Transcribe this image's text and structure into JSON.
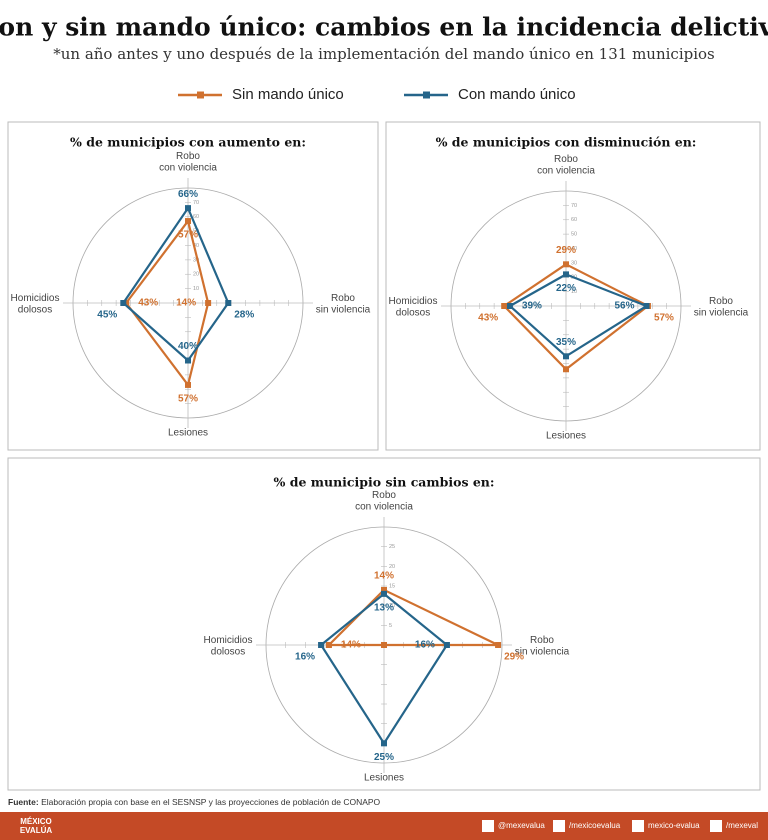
{
  "title": "Con y sin mando único: cambios en la incidencia delictiva",
  "subtitle": "*un año antes y uno después de la implementación del mando único en 131 municipios",
  "chart_data": [
    {
      "type": "radar",
      "title": "% de municipios con aumento en:",
      "categories": [
        "Robo\ncon violencia",
        "Robo\nsin violencia",
        "Lesiones",
        "Homicidios\ndolosos"
      ],
      "rlim": [
        0,
        80
      ],
      "rticks": [
        10,
        20,
        30,
        40,
        50,
        60,
        70
      ],
      "series": [
        {
          "name": "Sin mando único",
          "color": "#d0712f",
          "values": [
            57,
            14,
            57,
            43
          ],
          "value_labels": [
            "57%",
            "14%",
            "57%",
            "43%"
          ]
        },
        {
          "name": "Con mando único",
          "color": "#25658a",
          "values": [
            66,
            28,
            40,
            45
          ],
          "value_labels": [
            "66%",
            "28%",
            "40%",
            "45%"
          ]
        }
      ]
    },
    {
      "type": "radar",
      "title": "% de municipios con disminución en:",
      "categories": [
        "Robo\ncon violencia",
        "Robo\nsin violencia",
        "Lesiones",
        "Homicidios\ndolosos"
      ],
      "rlim": [
        0,
        80
      ],
      "rticks": [
        10,
        20,
        30,
        40,
        50,
        60,
        70
      ],
      "series": [
        {
          "name": "Sin mando único",
          "color": "#d0712f",
          "values": [
            29,
            57,
            44,
            43
          ],
          "value_labels": [
            "29%",
            "57%",
            null,
            "43%"
          ]
        },
        {
          "name": "Con mando único",
          "color": "#25658a",
          "values": [
            22,
            56,
            35,
            39
          ],
          "value_labels": [
            "22%",
            "56%",
            "35%",
            "39%"
          ]
        }
      ]
    },
    {
      "type": "radar",
      "title": "% de municipio sin cambios en:",
      "categories": [
        "Robo\ncon violencia",
        "Robo\nsin violencia",
        "Lesiones",
        "Homicidios\ndolosos"
      ],
      "rlim": [
        0,
        30
      ],
      "rticks": [
        5,
        10,
        15,
        20,
        25
      ],
      "series": [
        {
          "name": "Sin mando único",
          "color": "#d0712f",
          "values": [
            14,
            29,
            0,
            14
          ],
          "value_labels": [
            "14%",
            "29%",
            null,
            "14%"
          ]
        },
        {
          "name": "Con mando único",
          "color": "#25658a",
          "values": [
            13,
            16,
            25,
            16
          ],
          "value_labels": [
            "13%",
            "16%",
            "25%",
            "16%"
          ]
        }
      ]
    }
  ],
  "source": {
    "label": "Fuente:",
    "text": " Elaboración propia con base en el SESNSP y las proyecciones de población de CONAPO"
  },
  "footer": {
    "logo": "MÉXICO\nEVALÚA",
    "twitter": "@mexevalua",
    "facebook": "/mexicoevalua",
    "linkedin": "mexico-evalua",
    "youtube": "/mexeval"
  }
}
